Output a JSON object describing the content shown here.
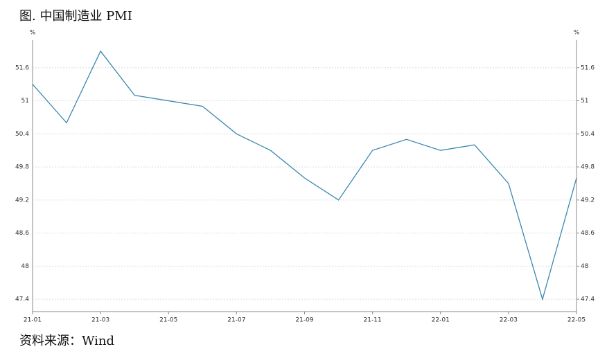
{
  "chart_data": {
    "type": "line",
    "title": "图. 中国制造业 PMI",
    "source": "资料来源：Wind",
    "y_unit": "%",
    "y2_unit": "%",
    "categories": [
      "21-01",
      null,
      "21-03",
      null,
      "21-05",
      null,
      "21-07",
      null,
      "21-09",
      null,
      "21-11",
      null,
      "22-01",
      null,
      "22-03",
      null,
      "22-05"
    ],
    "series": [
      {
        "name": "PMI",
        "color": "#3a87b0",
        "values": [
          51.3,
          50.6,
          51.9,
          51.1,
          51.0,
          50.9,
          50.4,
          50.1,
          49.6,
          49.2,
          50.1,
          50.3,
          50.1,
          50.2,
          49.5,
          47.4,
          49.6
        ]
      }
    ],
    "ylim": [
      47.175,
      52.1
    ],
    "yticks": [
      47.4,
      48,
      48.6,
      49.2,
      49.8,
      50.4,
      51,
      51.6
    ],
    "y2lim": [
      47.175,
      52.1
    ],
    "y2ticks": [
      47.4,
      48,
      48.6,
      49.2,
      49.8,
      50.4,
      51,
      51.6
    ],
    "grid": true
  }
}
